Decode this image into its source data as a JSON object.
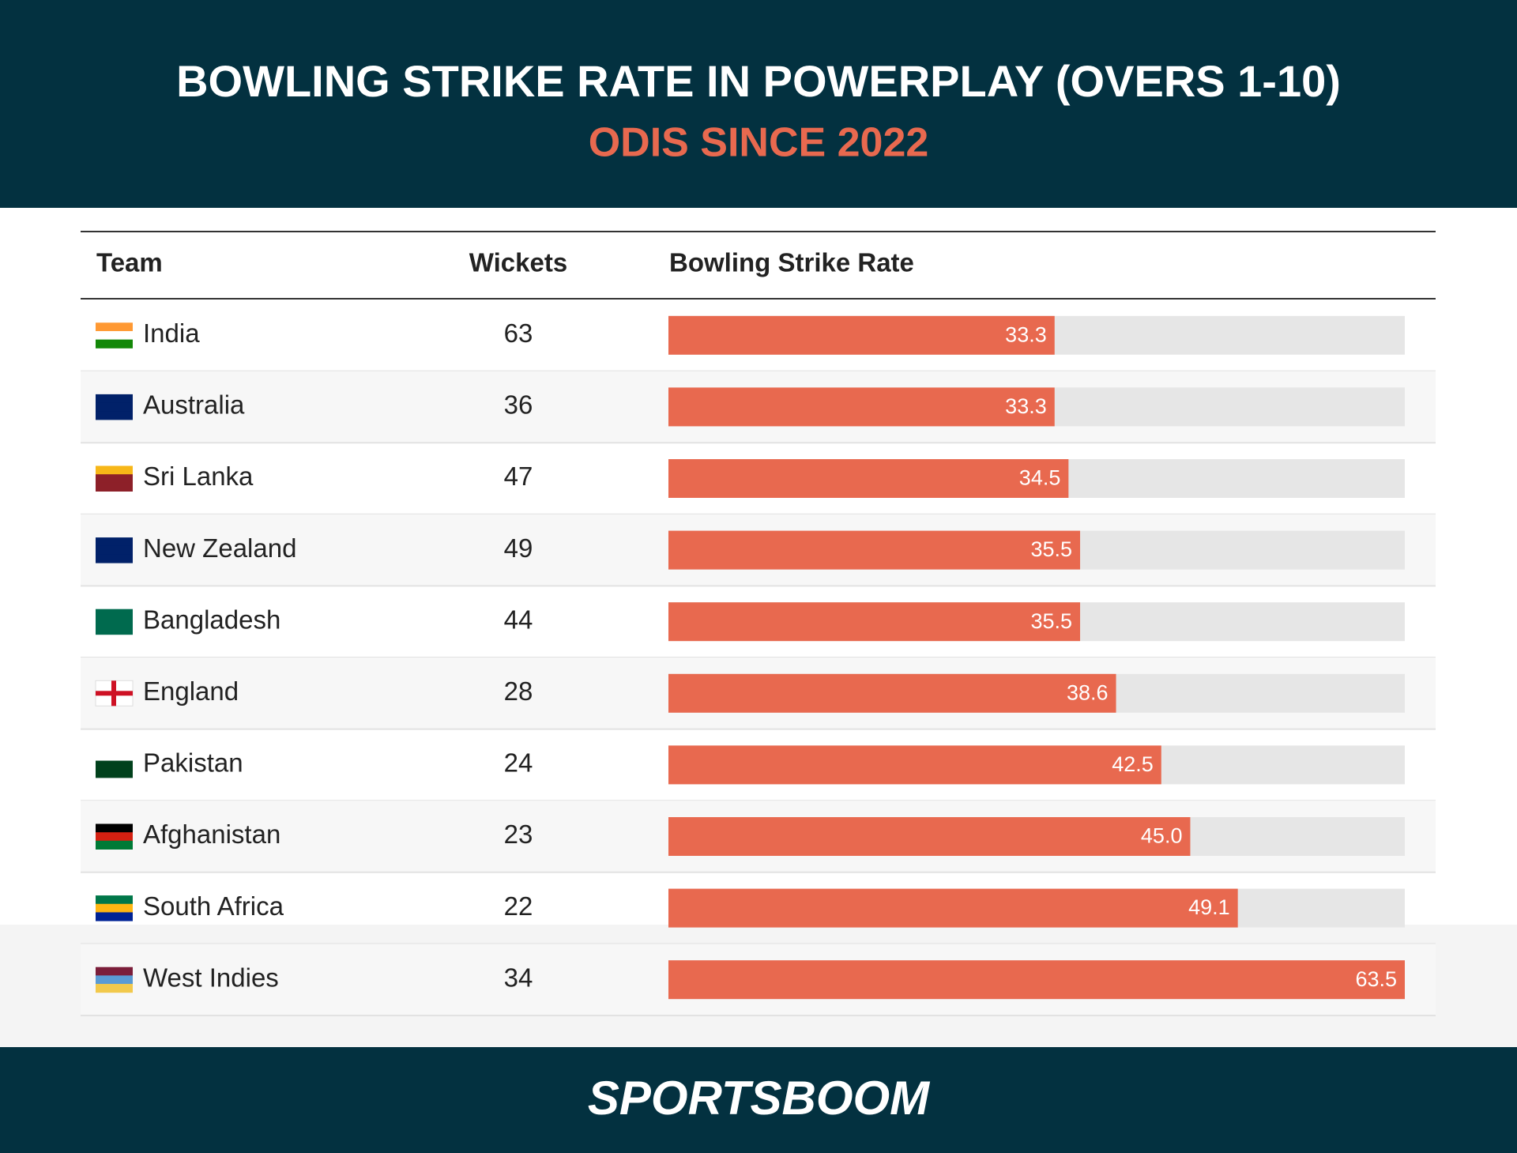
{
  "chart_data": {
    "type": "bar",
    "title": "BOWLING STRIKE RATE IN POWERPLAY (OVERS 1-10)",
    "subtitle": "ODIS SINCE 2022",
    "columns": [
      "Team",
      "Wickets",
      "Bowling Strike Rate"
    ],
    "categories": [
      "India",
      "Australia",
      "Sri Lanka",
      "New Zealand",
      "Bangladesh",
      "England",
      "Pakistan",
      "Afghanistan",
      "South Africa",
      "West Indies"
    ],
    "wickets": [
      63,
      36,
      47,
      49,
      44,
      28,
      24,
      23,
      22,
      34
    ],
    "values": [
      33.3,
      33.3,
      34.5,
      35.5,
      35.5,
      38.6,
      42.5,
      45.0,
      49.1,
      63.5
    ],
    "value_labels": [
      "33.3",
      "33.3",
      "34.5",
      "35.5",
      "35.5",
      "38.6",
      "42.5",
      "45.0",
      "49.1",
      "63.5"
    ],
    "xlim": [
      0,
      63.5
    ],
    "color": "#e8694f",
    "track_color": "#e6e6e6",
    "brand": "SPORTSBOOM"
  }
}
